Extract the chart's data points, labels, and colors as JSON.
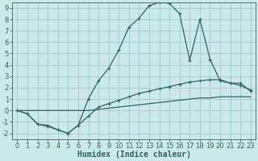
{
  "xlabel": "Humidex (Indice chaleur)",
  "xlim": [
    -0.5,
    23.5
  ],
  "ylim": [
    -2.5,
    9.5
  ],
  "xticks": [
    0,
    1,
    2,
    3,
    4,
    5,
    6,
    7,
    8,
    9,
    10,
    11,
    12,
    13,
    14,
    15,
    16,
    17,
    18,
    19,
    20,
    21,
    22,
    23
  ],
  "yticks": [
    -2,
    -1,
    0,
    1,
    2,
    3,
    4,
    5,
    6,
    7,
    8,
    9
  ],
  "bg_color": "#cce8e8",
  "grid_color": "#a0cccc",
  "line_color": "#2a6868",
  "line1_x": [
    0,
    1,
    2,
    3,
    4,
    5,
    6,
    7,
    8,
    9,
    10,
    11,
    12,
    13,
    14,
    15,
    16,
    17,
    18,
    19,
    20,
    21,
    22,
    23
  ],
  "line1_y": [
    0,
    -0.3,
    -1.2,
    -1.3,
    -1.7,
    -2.0,
    -1.3,
    1.0,
    2.6,
    3.7,
    5.3,
    7.3,
    8.1,
    9.2,
    9.5,
    9.4,
    8.5,
    4.4,
    8.0,
    4.5,
    2.6,
    2.4,
    2.2,
    1.8
  ],
  "line2_x": [
    0,
    1,
    2,
    3,
    4,
    5,
    6,
    7,
    8,
    9,
    10,
    11,
    12,
    13,
    14,
    15,
    16,
    17,
    18,
    19,
    20,
    21,
    22,
    23
  ],
  "line2_y": [
    0,
    -0.3,
    -1.2,
    -1.4,
    -1.7,
    -2.0,
    -1.3,
    -0.5,
    0.3,
    0.6,
    0.9,
    1.2,
    1.5,
    1.7,
    1.9,
    2.1,
    2.3,
    2.5,
    2.6,
    2.7,
    2.7,
    2.4,
    2.4,
    1.7
  ],
  "line3_x": [
    0,
    1,
    2,
    3,
    4,
    5,
    6,
    7,
    8,
    9,
    10,
    11,
    12,
    13,
    14,
    15,
    16,
    17,
    18,
    19,
    20,
    21,
    22,
    23
  ],
  "line3_y": [
    0,
    0,
    0,
    0,
    0,
    0,
    0,
    0,
    0.1,
    0.2,
    0.3,
    0.4,
    0.5,
    0.6,
    0.7,
    0.8,
    0.9,
    1.0,
    1.1,
    1.1,
    1.2,
    1.2,
    1.2,
    1.2
  ],
  "tick_fontsize": 6,
  "label_fontsize": 7
}
